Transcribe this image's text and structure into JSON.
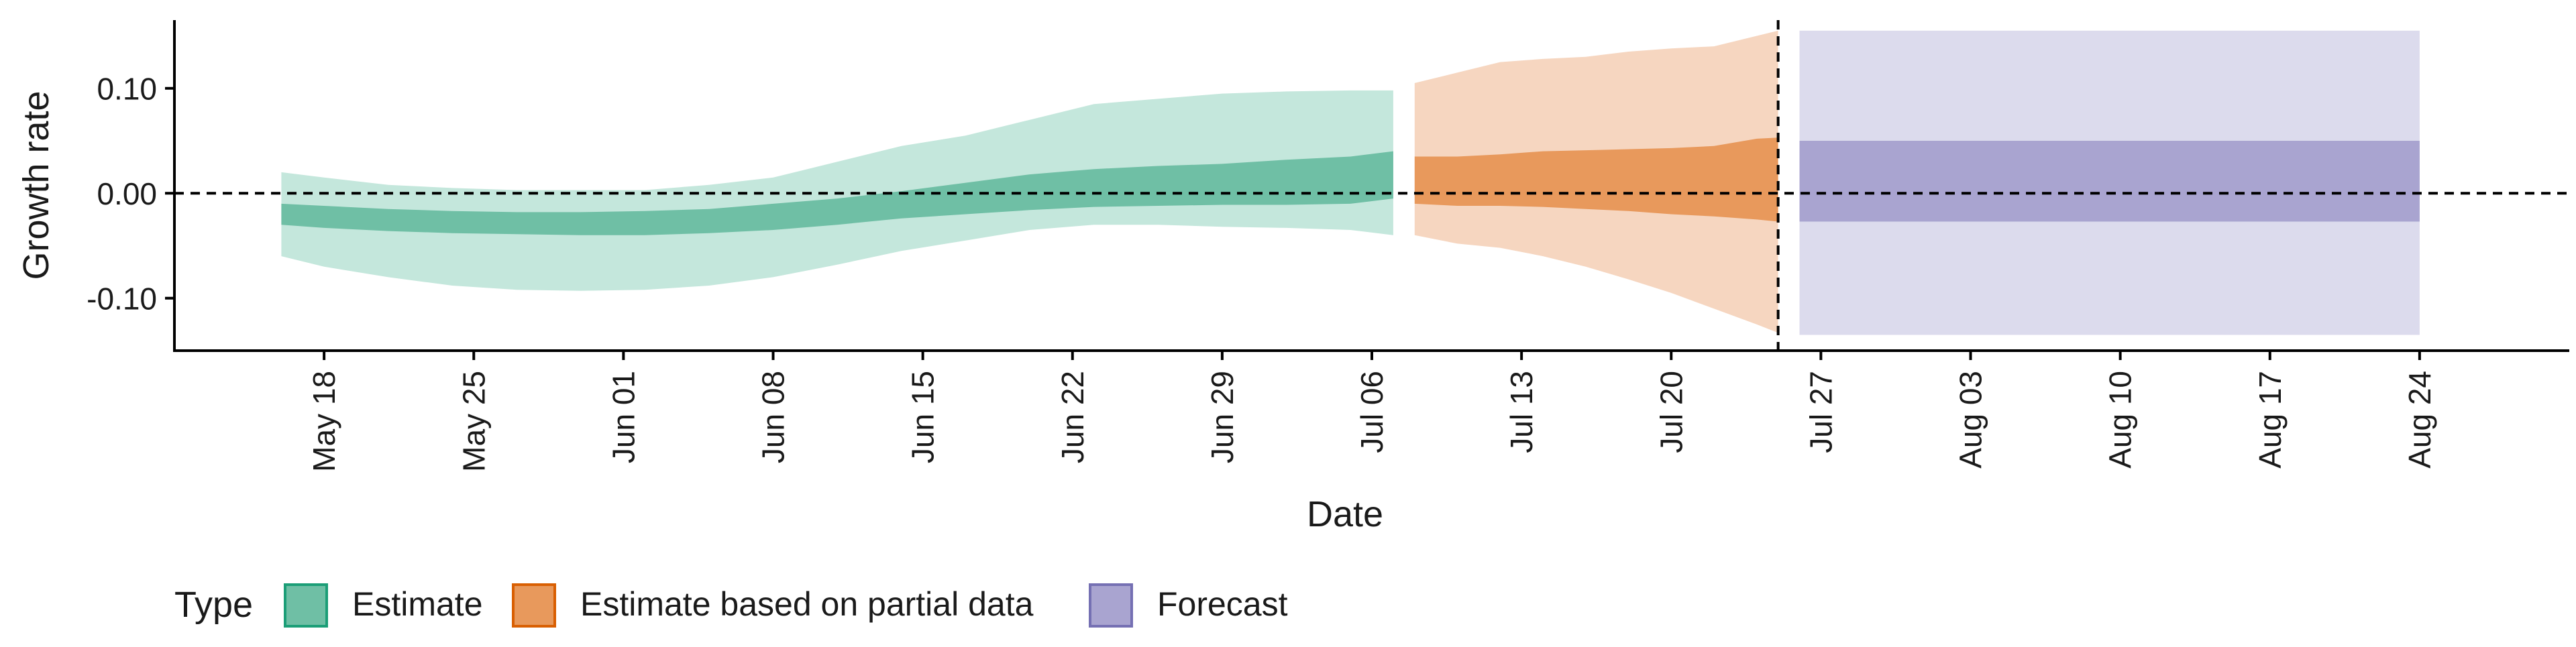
{
  "chart_data": {
    "type": "area",
    "title": "",
    "xlabel": "Date",
    "ylabel": "Growth rate",
    "ylim": [
      -0.15,
      0.165
    ],
    "xlim": [
      "2020-05-11",
      "2020-08-31"
    ],
    "yticks": [
      {
        "value": 0.1,
        "label": "0.10"
      },
      {
        "value": 0.0,
        "label": "0.00"
      },
      {
        "value": -0.1,
        "label": "-0.10"
      }
    ],
    "xticks": [
      {
        "date": "2020-05-18",
        "label": "May 18"
      },
      {
        "date": "2020-05-25",
        "label": "May 25"
      },
      {
        "date": "2020-06-01",
        "label": "Jun 01"
      },
      {
        "date": "2020-06-08",
        "label": "Jun 08"
      },
      {
        "date": "2020-06-15",
        "label": "Jun 15"
      },
      {
        "date": "2020-06-22",
        "label": "Jun 22"
      },
      {
        "date": "2020-06-29",
        "label": "Jun 29"
      },
      {
        "date": "2020-07-06",
        "label": "Jul 06"
      },
      {
        "date": "2020-07-13",
        "label": "Jul 13"
      },
      {
        "date": "2020-07-20",
        "label": "Jul 20"
      },
      {
        "date": "2020-07-27",
        "label": "Jul 27"
      },
      {
        "date": "2020-08-03",
        "label": "Aug 03"
      },
      {
        "date": "2020-08-10",
        "label": "Aug 10"
      },
      {
        "date": "2020-08-17",
        "label": "Aug 17"
      },
      {
        "date": "2020-08-24",
        "label": "Aug 24"
      }
    ],
    "reference_lines": [
      {
        "axis": "y",
        "value": 0,
        "style": "dashed"
      },
      {
        "axis": "x",
        "date": "2020-07-25",
        "style": "dashed"
      }
    ],
    "grid": false,
    "legend": {
      "title": "Type",
      "position": "bottom",
      "entries": [
        {
          "label": "Estimate",
          "fill": "#6fbfa5",
          "stroke": "#1b9e77"
        },
        {
          "label": "Estimate based on partial data",
          "fill": "#e8995c",
          "stroke": "#d95f02"
        },
        {
          "label": "Forecast",
          "fill": "#a9a4d0",
          "stroke": "#7570b3"
        }
      ]
    },
    "series": [
      {
        "name": "Estimate",
        "outer_fill": "#c4e7dc",
        "inner_fill": "#6fbfa5",
        "x": [
          "2020-05-16",
          "2020-05-18",
          "2020-05-21",
          "2020-05-24",
          "2020-05-27",
          "2020-05-30",
          "2020-06-02",
          "2020-06-05",
          "2020-06-08",
          "2020-06-11",
          "2020-06-14",
          "2020-06-17",
          "2020-06-20",
          "2020-06-23",
          "2020-06-26",
          "2020-06-29",
          "2020-07-02",
          "2020-07-05",
          "2020-07-07"
        ],
        "outer_upper": [
          0.02,
          0.015,
          0.008,
          0.005,
          0.003,
          0.003,
          0.003,
          0.008,
          0.015,
          0.03,
          0.045,
          0.055,
          0.07,
          0.085,
          0.09,
          0.095,
          0.097,
          0.098,
          0.098
        ],
        "outer_lower": [
          -0.06,
          -0.07,
          -0.08,
          -0.088,
          -0.092,
          -0.093,
          -0.092,
          -0.088,
          -0.08,
          -0.068,
          -0.055,
          -0.045,
          -0.035,
          -0.03,
          -0.03,
          -0.032,
          -0.033,
          -0.035,
          -0.04
        ],
        "inner_upper": [
          -0.01,
          -0.012,
          -0.015,
          -0.017,
          -0.018,
          -0.018,
          -0.017,
          -0.015,
          -0.01,
          -0.005,
          0.002,
          0.01,
          0.018,
          0.023,
          0.026,
          0.028,
          0.032,
          0.035,
          0.04
        ],
        "inner_lower": [
          -0.03,
          -0.033,
          -0.036,
          -0.038,
          -0.039,
          -0.04,
          -0.04,
          -0.038,
          -0.035,
          -0.03,
          -0.024,
          -0.02,
          -0.016,
          -0.013,
          -0.012,
          -0.011,
          -0.011,
          -0.01,
          -0.005
        ]
      },
      {
        "name": "Estimate based on partial data",
        "outer_fill": "#f6d6c0",
        "inner_fill": "#e8995c",
        "x": [
          "2020-07-08",
          "2020-07-10",
          "2020-07-12",
          "2020-07-14",
          "2020-07-16",
          "2020-07-18",
          "2020-07-20",
          "2020-07-22",
          "2020-07-24",
          "2020-07-25"
        ],
        "outer_upper": [
          0.105,
          0.115,
          0.125,
          0.128,
          0.13,
          0.135,
          0.138,
          0.14,
          0.15,
          0.155
        ],
        "outer_lower": [
          -0.04,
          -0.048,
          -0.052,
          -0.06,
          -0.07,
          -0.082,
          -0.095,
          -0.11,
          -0.125,
          -0.133
        ],
        "inner_upper": [
          0.035,
          0.035,
          0.037,
          0.04,
          0.041,
          0.042,
          0.043,
          0.045,
          0.052,
          0.053
        ],
        "inner_lower": [
          -0.01,
          -0.012,
          -0.012,
          -0.013,
          -0.015,
          -0.017,
          -0.02,
          -0.022,
          -0.025,
          -0.027
        ]
      },
      {
        "name": "Forecast",
        "outer_fill": "#dcdbed",
        "inner_fill": "#a9a4d0",
        "x": [
          "2020-07-26",
          "2020-08-24"
        ],
        "outer_upper": [
          0.155,
          0.155
        ],
        "outer_lower": [
          -0.135,
          -0.135
        ],
        "inner_upper": [
          0.05,
          0.05
        ],
        "inner_lower": [
          -0.027,
          -0.027
        ]
      }
    ]
  }
}
